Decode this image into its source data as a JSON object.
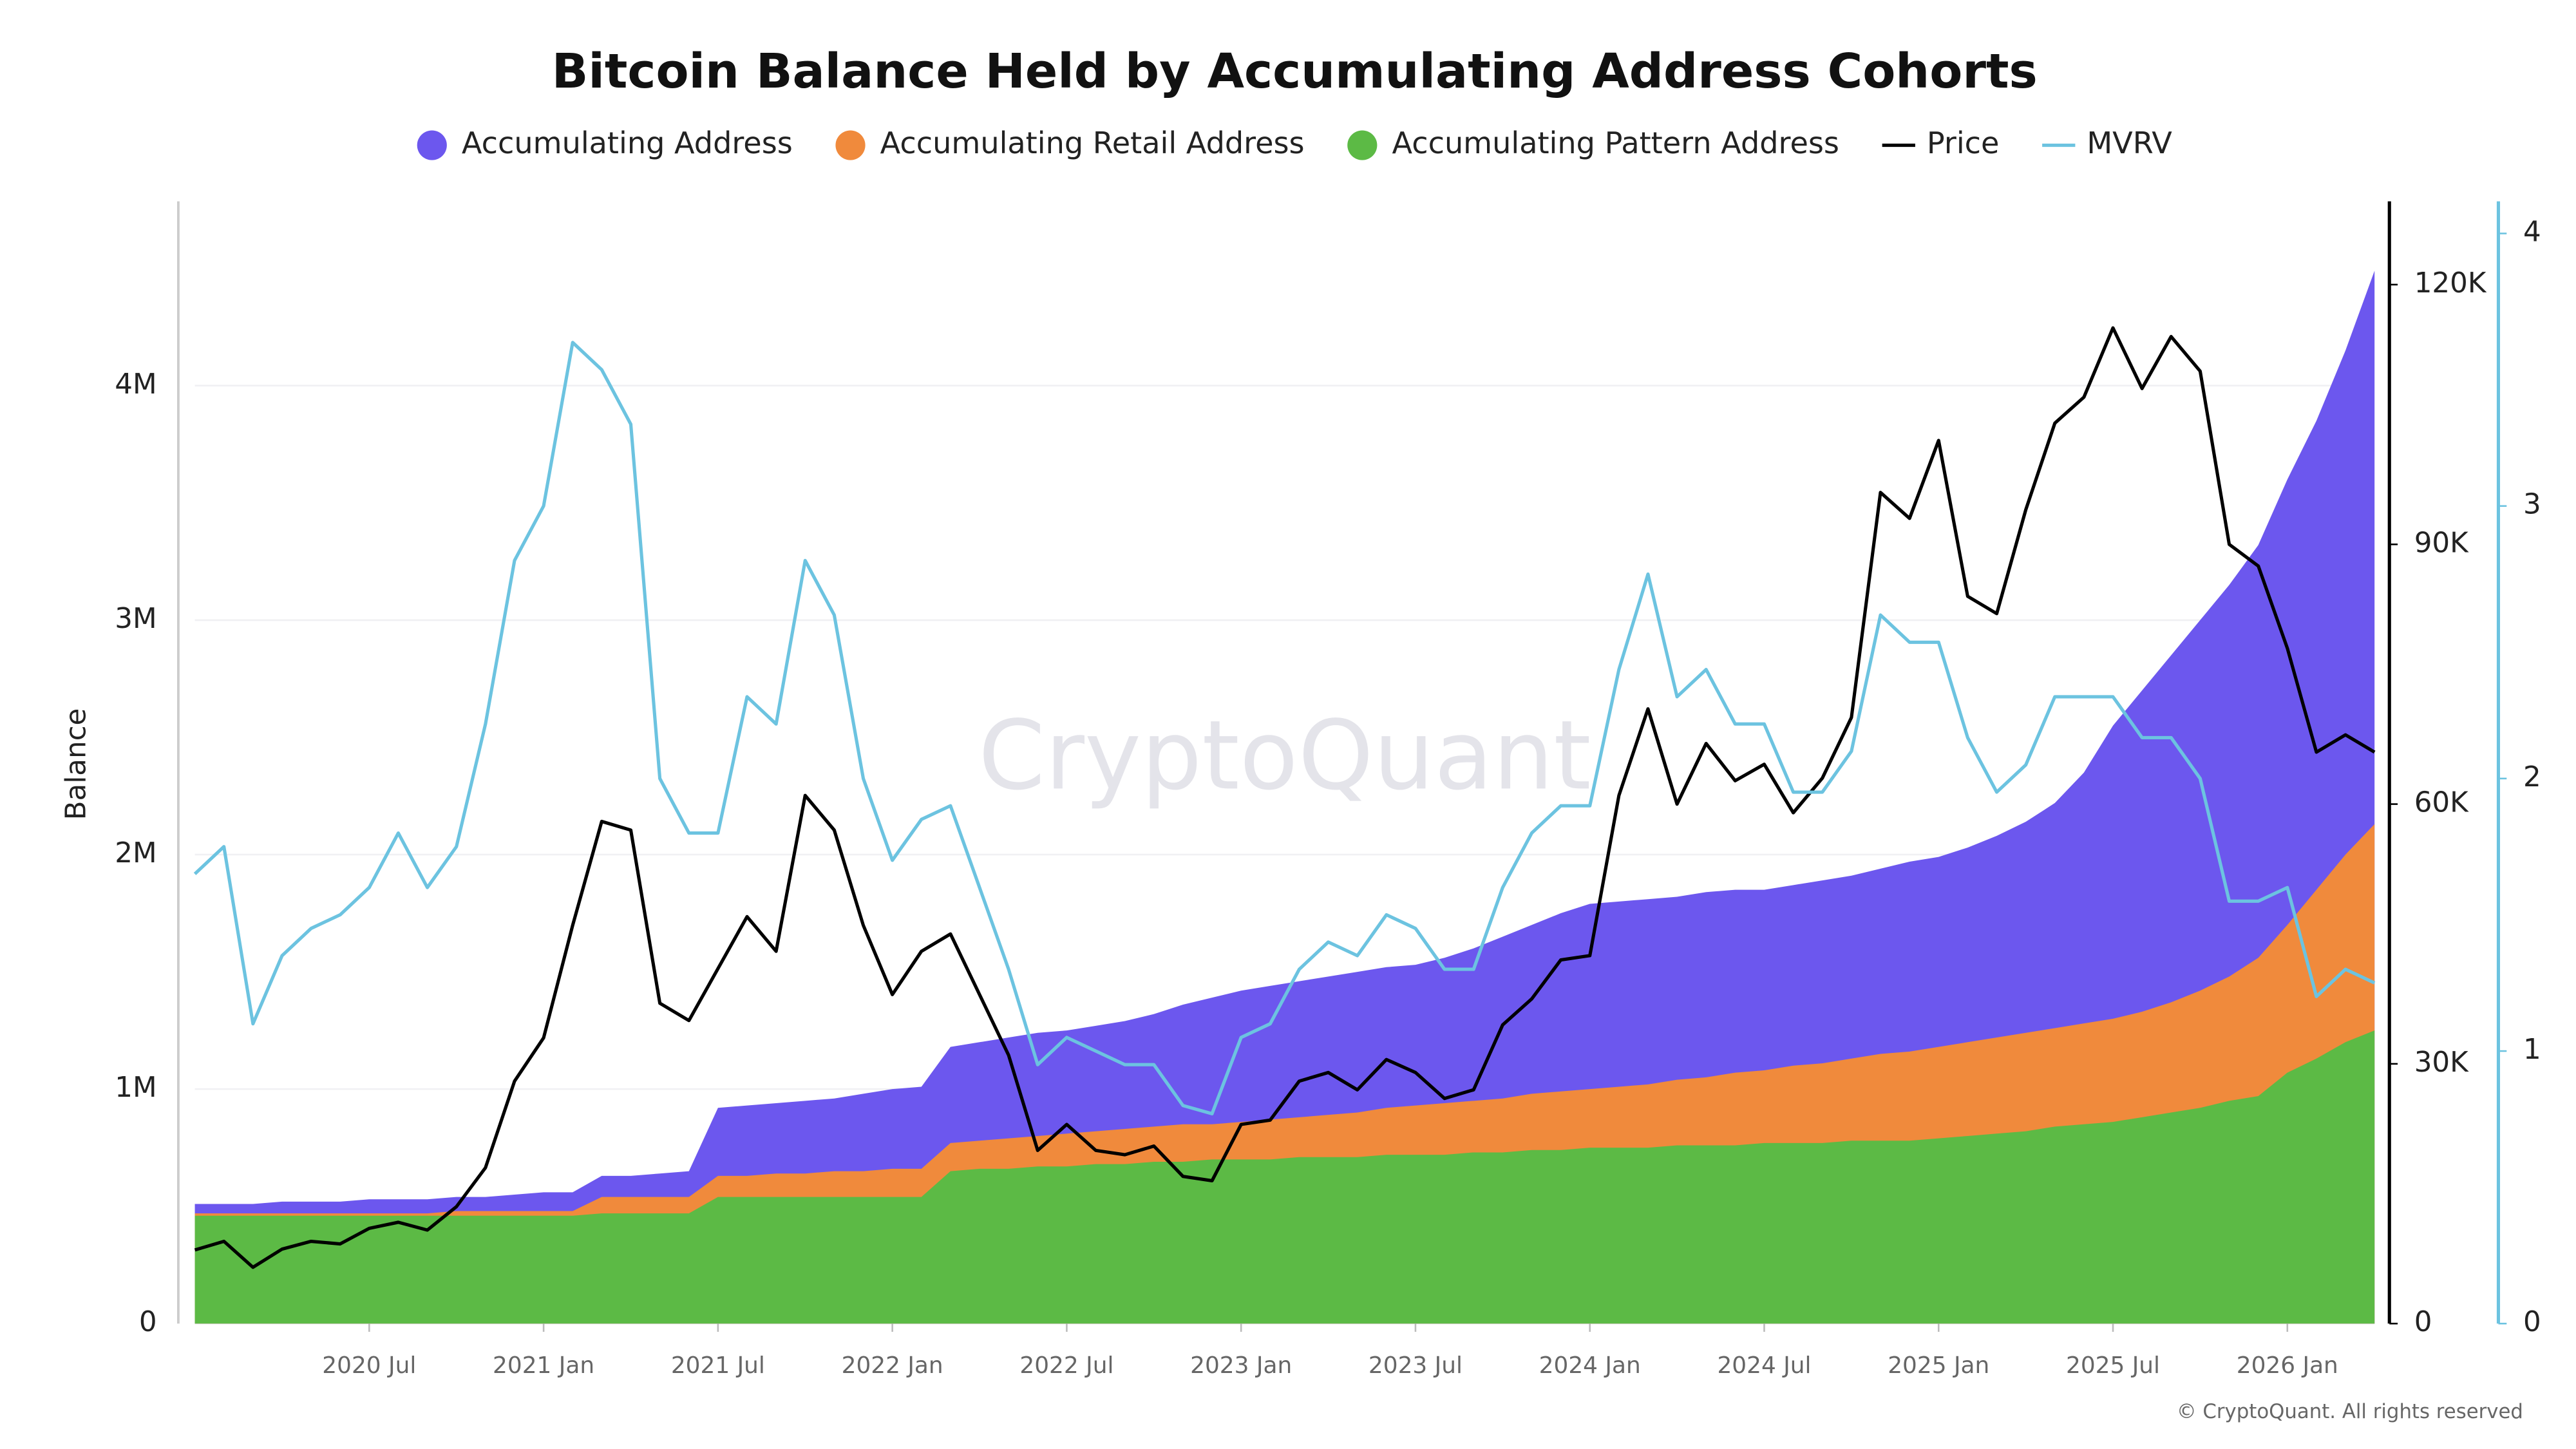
{
  "chart_data": {
    "type": "area",
    "title": "Bitcoin Balance Held by Accumulating Address Cohorts",
    "y_label": "Balance",
    "watermark": "CryptoQuant",
    "credit": "© CryptoQuant. All rights reserved",
    "x": [
      "2020-01",
      "2020-02",
      "2020-03",
      "2020-04",
      "2020-05",
      "2020-06",
      "2020-07",
      "2020-08",
      "2020-09",
      "2020-10",
      "2020-11",
      "2020-12",
      "2021-01",
      "2021-02",
      "2021-03",
      "2021-04",
      "2021-05",
      "2021-06",
      "2021-07",
      "2021-08",
      "2021-09",
      "2021-10",
      "2021-11",
      "2021-12",
      "2022-01",
      "2022-02",
      "2022-03",
      "2022-04",
      "2022-05",
      "2022-06",
      "2022-07",
      "2022-08",
      "2022-09",
      "2022-10",
      "2022-11",
      "2022-12",
      "2023-01",
      "2023-02",
      "2023-03",
      "2023-04",
      "2023-05",
      "2023-06",
      "2023-07",
      "2023-08",
      "2023-09",
      "2023-10",
      "2023-11",
      "2023-12",
      "2024-01",
      "2024-02",
      "2024-03",
      "2024-04",
      "2024-05",
      "2024-06",
      "2024-07",
      "2024-08",
      "2024-09",
      "2024-10",
      "2024-11",
      "2024-12",
      "2025-01",
      "2025-02",
      "2025-03",
      "2025-04",
      "2025-05",
      "2025-06",
      "2025-07",
      "2025-08",
      "2025-09",
      "2025-10",
      "2025-11",
      "2025-12",
      "2026-01",
      "2026-02",
      "2026-03",
      "2026-04"
    ],
    "xlim": [
      "2020-01",
      "2026-04"
    ],
    "xticks": [
      {
        "value": "2020-07",
        "label": "2020 Jul"
      },
      {
        "value": "2021-01",
        "label": "2021 Jan"
      },
      {
        "value": "2021-07",
        "label": "2021 Jul"
      },
      {
        "value": "2022-01",
        "label": "2022 Jan"
      },
      {
        "value": "2022-07",
        "label": "2022 Jul"
      },
      {
        "value": "2023-01",
        "label": "2023 Jan"
      },
      {
        "value": "2023-07",
        "label": "2023 Jul"
      },
      {
        "value": "2024-01",
        "label": "2024 Jan"
      },
      {
        "value": "2024-07",
        "label": "2024 Jul"
      },
      {
        "value": "2025-01",
        "label": "2025 Jan"
      },
      {
        "value": "2025-07",
        "label": "2025 Jul"
      },
      {
        "value": "2026-01",
        "label": "2026 Jan"
      }
    ],
    "ylim": [
      0,
      4800000
    ],
    "yticks": [
      0,
      {
        "value": 1000000,
        "label": "1M"
      },
      {
        "value": 2000000,
        "label": "2M"
      },
      {
        "value": 3000000,
        "label": "3M"
      },
      {
        "value": 4000000,
        "label": "4M"
      }
    ],
    "y2lim": [
      0,
      130000
    ],
    "y2ticks": [
      0,
      {
        "value": 30000,
        "label": "30K"
      },
      {
        "value": 60000,
        "label": "60K"
      },
      {
        "value": 90000,
        "label": "90K"
      },
      {
        "value": 120000,
        "label": "120K"
      }
    ],
    "y3lim": [
      0,
      4.13
    ],
    "y3ticks": [
      0,
      1,
      2,
      3,
      4
    ],
    "grid": true,
    "series": [
      {
        "name": "Accumulating Address",
        "type": "area",
        "color": "#6c57ee",
        "values": [
          510000,
          510000,
          510000,
          520000,
          520000,
          520000,
          530000,
          530000,
          530000,
          540000,
          540000,
          550000,
          560000,
          560000,
          630000,
          630000,
          640000,
          650000,
          920000,
          930000,
          940000,
          950000,
          960000,
          980000,
          1000000,
          1010000,
          1180000,
          1200000,
          1220000,
          1240000,
          1250000,
          1270000,
          1290000,
          1320000,
          1360000,
          1390000,
          1420000,
          1440000,
          1460000,
          1480000,
          1500000,
          1520000,
          1530000,
          1560000,
          1600000,
          1650000,
          1700000,
          1750000,
          1790000,
          1800000,
          1810000,
          1820000,
          1840000,
          1850000,
          1850000,
          1870000,
          1890000,
          1910000,
          1940000,
          1970000,
          1990000,
          2030000,
          2080000,
          2140000,
          2220000,
          2350000,
          2550000,
          2700000,
          2850000,
          3000000,
          3150000,
          3320000,
          3600000,
          3850000,
          4150000,
          4490000
        ]
      },
      {
        "name": "Accumulating Retail Address",
        "type": "area",
        "color": "#f08a3c",
        "values": [
          470000,
          470000,
          470000,
          470000,
          470000,
          470000,
          470000,
          470000,
          470000,
          480000,
          480000,
          480000,
          480000,
          480000,
          540000,
          540000,
          540000,
          540000,
          630000,
          630000,
          640000,
          640000,
          650000,
          650000,
          660000,
          660000,
          770000,
          780000,
          790000,
          800000,
          810000,
          820000,
          830000,
          840000,
          850000,
          850000,
          860000,
          870000,
          880000,
          890000,
          900000,
          920000,
          930000,
          940000,
          950000,
          960000,
          980000,
          990000,
          1000000,
          1010000,
          1020000,
          1040000,
          1050000,
          1070000,
          1080000,
          1100000,
          1110000,
          1130000,
          1150000,
          1160000,
          1180000,
          1200000,
          1220000,
          1240000,
          1260000,
          1280000,
          1300000,
          1330000,
          1370000,
          1420000,
          1480000,
          1560000,
          1700000,
          1850000,
          2000000,
          2130000
        ]
      },
      {
        "name": "Accumulating Pattern Address",
        "type": "area",
        "color": "#5cba45",
        "values": [
          460000,
          460000,
          460000,
          460000,
          460000,
          460000,
          460000,
          460000,
          460000,
          460000,
          460000,
          460000,
          460000,
          460000,
          470000,
          470000,
          470000,
          470000,
          540000,
          540000,
          540000,
          540000,
          540000,
          540000,
          540000,
          540000,
          650000,
          660000,
          660000,
          670000,
          670000,
          680000,
          680000,
          690000,
          690000,
          700000,
          700000,
          700000,
          710000,
          710000,
          710000,
          720000,
          720000,
          720000,
          730000,
          730000,
          740000,
          740000,
          750000,
          750000,
          750000,
          760000,
          760000,
          760000,
          770000,
          770000,
          770000,
          780000,
          780000,
          780000,
          790000,
          800000,
          810000,
          820000,
          840000,
          850000,
          860000,
          880000,
          900000,
          920000,
          950000,
          970000,
          1070000,
          1130000,
          1200000,
          1250000
        ]
      },
      {
        "name": "Price",
        "type": "line",
        "axis": "y2",
        "color": "#000000",
        "values": [
          8500,
          9500,
          6500,
          8600,
          9500,
          9200,
          11000,
          11700,
          10800,
          13500,
          18000,
          28000,
          33000,
          46000,
          58000,
          57000,
          37000,
          35000,
          41000,
          47000,
          43000,
          61000,
          57000,
          46000,
          38000,
          43000,
          45000,
          38000,
          31000,
          20000,
          23000,
          20000,
          19500,
          20500,
          17000,
          16500,
          23000,
          23500,
          28000,
          29000,
          27000,
          30500,
          29000,
          26000,
          27000,
          34500,
          37500,
          42000,
          42500,
          61000,
          71000,
          60000,
          67000,
          62700,
          64600,
          59000,
          63000,
          70000,
          96000,
          93000,
          102000,
          84000,
          82000,
          94000,
          104000,
          107000,
          115000,
          108000,
          114000,
          110000,
          90000,
          87500,
          78000,
          66000,
          68000,
          66000
        ]
      },
      {
        "name": "MVRV",
        "type": "line",
        "axis": "y3",
        "color": "#6cc3e0",
        "values": [
          1.65,
          1.75,
          1.1,
          1.35,
          1.45,
          1.5,
          1.6,
          1.8,
          1.6,
          1.75,
          2.2,
          2.8,
          3.0,
          3.6,
          3.5,
          3.3,
          2.0,
          1.8,
          1.8,
          2.3,
          2.2,
          2.8,
          2.6,
          2.0,
          1.7,
          1.85,
          1.9,
          1.6,
          1.3,
          0.95,
          1.05,
          1.0,
          0.95,
          0.95,
          0.8,
          0.77,
          1.05,
          1.1,
          1.3,
          1.4,
          1.35,
          1.5,
          1.45,
          1.3,
          1.3,
          1.6,
          1.8,
          1.9,
          1.9,
          2.4,
          2.75,
          2.3,
          2.4,
          2.2,
          2.2,
          1.95,
          1.95,
          2.1,
          2.6,
          2.5,
          2.5,
          2.15,
          1.95,
          2.05,
          2.3,
          2.3,
          2.3,
          2.15,
          2.15,
          2.0,
          1.55,
          1.55,
          1.6,
          1.2,
          1.3,
          1.25
        ]
      }
    ]
  }
}
